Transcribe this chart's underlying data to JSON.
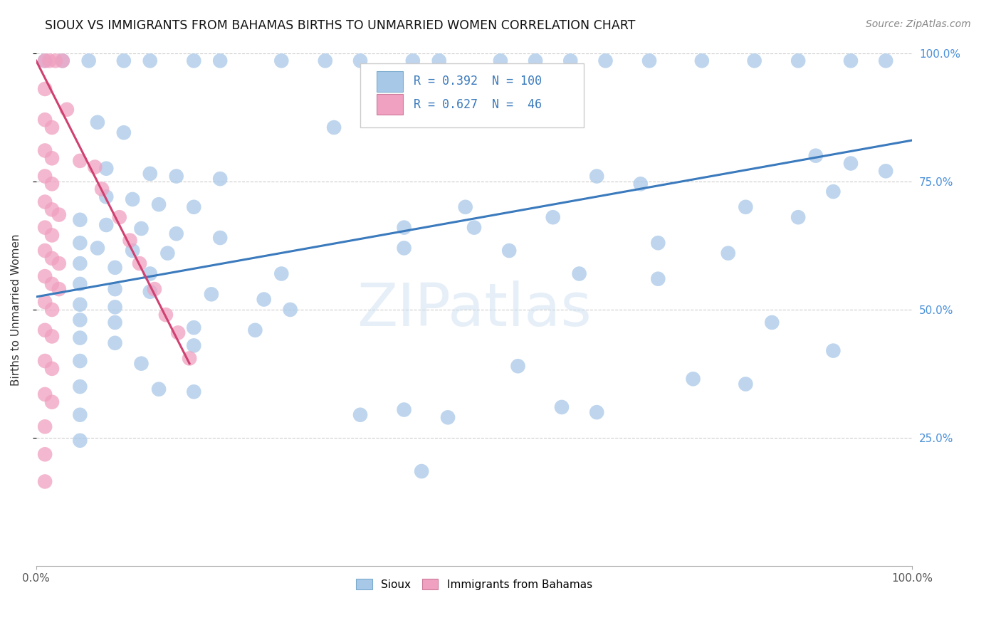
{
  "title": "SIOUX VS IMMIGRANTS FROM BAHAMAS BIRTHS TO UNMARRIED WOMEN CORRELATION CHART",
  "source": "Source: ZipAtlas.com",
  "ylabel": "Births to Unmarried Women",
  "xlim": [
    0.0,
    1.0
  ],
  "ylim": [
    0.0,
    1.0
  ],
  "ytick_labels": [
    "25.0%",
    "50.0%",
    "75.0%",
    "100.0%"
  ],
  "ytick_positions": [
    0.25,
    0.5,
    0.75,
    1.0
  ],
  "legend_box": {
    "R_blue": "0.392",
    "N_blue": "100",
    "R_pink": "0.627",
    "N_pink": " 46"
  },
  "watermark": "ZIPatlas",
  "sioux_color": "#a8c8e8",
  "bahamas_color": "#f0a0c0",
  "line_blue": "#3a7abd",
  "line_pink": "#d04070",
  "sioux_points": [
    [
      0.01,
      0.985
    ],
    [
      0.03,
      0.985
    ],
    [
      0.06,
      0.985
    ],
    [
      0.1,
      0.985
    ],
    [
      0.13,
      0.985
    ],
    [
      0.18,
      0.985
    ],
    [
      0.21,
      0.985
    ],
    [
      0.28,
      0.985
    ],
    [
      0.33,
      0.985
    ],
    [
      0.37,
      0.985
    ],
    [
      0.43,
      0.985
    ],
    [
      0.46,
      0.985
    ],
    [
      0.53,
      0.985
    ],
    [
      0.57,
      0.985
    ],
    [
      0.61,
      0.985
    ],
    [
      0.65,
      0.985
    ],
    [
      0.7,
      0.985
    ],
    [
      0.76,
      0.985
    ],
    [
      0.82,
      0.985
    ],
    [
      0.87,
      0.985
    ],
    [
      0.93,
      0.985
    ],
    [
      0.97,
      0.985
    ],
    [
      0.07,
      0.865
    ],
    [
      0.1,
      0.845
    ],
    [
      0.08,
      0.775
    ],
    [
      0.13,
      0.765
    ],
    [
      0.16,
      0.76
    ],
    [
      0.21,
      0.755
    ],
    [
      0.08,
      0.72
    ],
    [
      0.11,
      0.715
    ],
    [
      0.14,
      0.705
    ],
    [
      0.18,
      0.7
    ],
    [
      0.05,
      0.675
    ],
    [
      0.08,
      0.665
    ],
    [
      0.12,
      0.658
    ],
    [
      0.16,
      0.648
    ],
    [
      0.21,
      0.64
    ],
    [
      0.05,
      0.63
    ],
    [
      0.07,
      0.62
    ],
    [
      0.11,
      0.615
    ],
    [
      0.15,
      0.61
    ],
    [
      0.05,
      0.59
    ],
    [
      0.09,
      0.582
    ],
    [
      0.13,
      0.57
    ],
    [
      0.28,
      0.57
    ],
    [
      0.05,
      0.55
    ],
    [
      0.09,
      0.54
    ],
    [
      0.13,
      0.535
    ],
    [
      0.2,
      0.53
    ],
    [
      0.26,
      0.52
    ],
    [
      0.05,
      0.51
    ],
    [
      0.09,
      0.505
    ],
    [
      0.29,
      0.5
    ],
    [
      0.05,
      0.48
    ],
    [
      0.09,
      0.475
    ],
    [
      0.18,
      0.465
    ],
    [
      0.25,
      0.46
    ],
    [
      0.05,
      0.445
    ],
    [
      0.09,
      0.435
    ],
    [
      0.18,
      0.43
    ],
    [
      0.05,
      0.4
    ],
    [
      0.12,
      0.395
    ],
    [
      0.05,
      0.35
    ],
    [
      0.14,
      0.345
    ],
    [
      0.18,
      0.34
    ],
    [
      0.05,
      0.295
    ],
    [
      0.37,
      0.295
    ],
    [
      0.47,
      0.29
    ],
    [
      0.05,
      0.245
    ],
    [
      0.34,
      0.855
    ],
    [
      0.42,
      0.66
    ],
    [
      0.5,
      0.66
    ],
    [
      0.42,
      0.62
    ],
    [
      0.54,
      0.615
    ],
    [
      0.49,
      0.7
    ],
    [
      0.59,
      0.68
    ],
    [
      0.64,
      0.76
    ],
    [
      0.69,
      0.745
    ],
    [
      0.71,
      0.63
    ],
    [
      0.79,
      0.61
    ],
    [
      0.62,
      0.57
    ],
    [
      0.71,
      0.56
    ],
    [
      0.81,
      0.7
    ],
    [
      0.87,
      0.68
    ],
    [
      0.89,
      0.8
    ],
    [
      0.93,
      0.785
    ],
    [
      0.97,
      0.77
    ],
    [
      0.91,
      0.73
    ],
    [
      0.84,
      0.475
    ],
    [
      0.91,
      0.42
    ],
    [
      0.75,
      0.365
    ],
    [
      0.81,
      0.355
    ],
    [
      0.55,
      0.39
    ],
    [
      0.6,
      0.31
    ],
    [
      0.64,
      0.3
    ],
    [
      0.42,
      0.305
    ],
    [
      0.44,
      0.185
    ]
  ],
  "bahamas_points": [
    [
      0.01,
      0.985
    ],
    [
      0.015,
      0.985
    ],
    [
      0.022,
      0.985
    ],
    [
      0.03,
      0.985
    ],
    [
      0.01,
      0.93
    ],
    [
      0.01,
      0.87
    ],
    [
      0.018,
      0.855
    ],
    [
      0.01,
      0.81
    ],
    [
      0.018,
      0.795
    ],
    [
      0.01,
      0.76
    ],
    [
      0.018,
      0.745
    ],
    [
      0.01,
      0.71
    ],
    [
      0.018,
      0.695
    ],
    [
      0.026,
      0.685
    ],
    [
      0.01,
      0.66
    ],
    [
      0.018,
      0.645
    ],
    [
      0.01,
      0.615
    ],
    [
      0.018,
      0.6
    ],
    [
      0.026,
      0.59
    ],
    [
      0.01,
      0.565
    ],
    [
      0.018,
      0.55
    ],
    [
      0.026,
      0.54
    ],
    [
      0.01,
      0.515
    ],
    [
      0.018,
      0.5
    ],
    [
      0.01,
      0.46
    ],
    [
      0.018,
      0.448
    ],
    [
      0.01,
      0.4
    ],
    [
      0.018,
      0.385
    ],
    [
      0.01,
      0.335
    ],
    [
      0.018,
      0.32
    ],
    [
      0.01,
      0.272
    ],
    [
      0.01,
      0.218
    ],
    [
      0.01,
      0.165
    ],
    [
      0.035,
      0.89
    ],
    [
      0.05,
      0.79
    ],
    [
      0.067,
      0.778
    ],
    [
      0.075,
      0.735
    ],
    [
      0.095,
      0.68
    ],
    [
      0.107,
      0.635
    ],
    [
      0.118,
      0.59
    ],
    [
      0.135,
      0.54
    ],
    [
      0.148,
      0.49
    ],
    [
      0.162,
      0.455
    ],
    [
      0.175,
      0.405
    ]
  ],
  "blue_trendline_x": [
    0.0,
    1.0
  ],
  "blue_trendline_y": [
    0.525,
    0.83
  ],
  "pink_trendline_x": [
    0.0,
    0.175
  ],
  "pink_trendline_y": [
    0.985,
    0.395
  ]
}
